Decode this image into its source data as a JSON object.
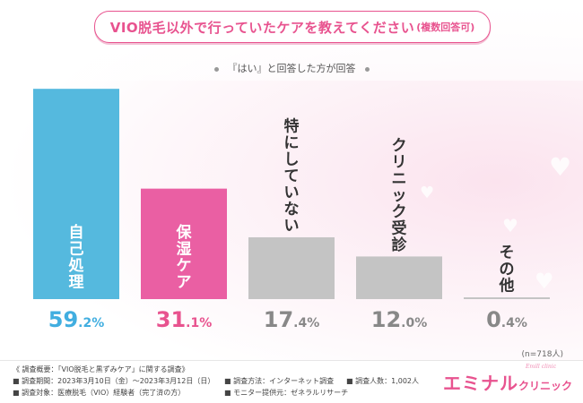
{
  "title_main": "VIO脱毛以外で行っていたケアを教えてください",
  "title_note": "(複数回答可)",
  "subtitle": "『はい』と回答した方が回答",
  "sample_note": "(n=718人)",
  "chart_data": {
    "type": "bar",
    "categories": [
      "自己処理",
      "保湿ケア",
      "特にしていない",
      "クリニック受診",
      "その他"
    ],
    "values": [
      59.2,
      31.1,
      17.4,
      12.0,
      0.4
    ],
    "value_labels": [
      "59.2%",
      "31.1%",
      "17.4%",
      "12.0%",
      "0.4%"
    ],
    "colors": [
      "#55b9de",
      "#ea5fa3",
      "#c4c4c4",
      "#c4c4c4",
      "#c4c4c4"
    ],
    "value_colors": [
      "#41aee0",
      "#e8538f",
      "#888888",
      "#888888",
      "#888888"
    ],
    "label_colors": [
      "#ffffff",
      "#ffffff",
      "#333333",
      "#333333",
      "#333333"
    ],
    "ylim": [
      0,
      60
    ]
  },
  "footer": {
    "overview": "《 調査概要：「VIO脱毛と黒ずみケア」に関する調査》",
    "period": "調査期間：2023年3月10日（金）〜2023年3月12日（日）",
    "method": "調査方法：インターネット調査",
    "count": "調査人数：1,002人",
    "target": "調査対象：医療脱毛（VIO）経験者（完了済の方）",
    "provider": "モニター提供元：ゼネラルリサーチ"
  },
  "logo": {
    "main": "エミナル",
    "sub": "クリニック",
    "tag": "Emill clinic"
  }
}
